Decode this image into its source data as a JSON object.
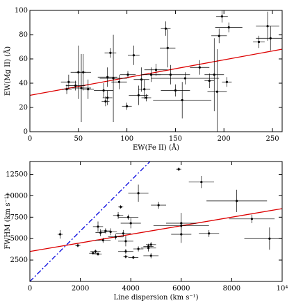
{
  "chart_data": [
    {
      "type": "scatter",
      "xlabel": "EW(Fe II) (Å)",
      "ylabel": "EW(Mg II) (Å)",
      "xlim": [
        0,
        260
      ],
      "ylim": [
        0,
        100
      ],
      "xticks": [
        0,
        50,
        100,
        150,
        200,
        250
      ],
      "yticks": [
        0,
        20,
        40,
        60,
        80,
        100
      ],
      "points": {
        "color": "#000000",
        "x": [
          38,
          40,
          47,
          50,
          53,
          55,
          60,
          76,
          78,
          80,
          80,
          83,
          86,
          92,
          100,
          101,
          107,
          112,
          115,
          118,
          120,
          125,
          130,
          140,
          142,
          145,
          150,
          157,
          160,
          175,
          185,
          190,
          193,
          195,
          198,
          203,
          236,
          245,
          248,
          205
        ],
        "y": [
          35,
          41,
          38,
          49,
          36,
          49,
          35,
          34,
          25,
          28,
          45,
          65,
          44,
          41,
          21,
          47,
          63,
          30,
          43,
          35,
          28,
          47,
          51,
          85,
          69,
          47,
          34,
          26,
          44,
          53,
          42,
          47,
          33,
          79,
          95,
          41,
          74,
          87,
          77,
          86
        ],
        "xerr": [
          5,
          8,
          10,
          8,
          10,
          8,
          6,
          10,
          4,
          5,
          10,
          6,
          14,
          8,
          5,
          8,
          6,
          10,
          8,
          6,
          5,
          10,
          12,
          5,
          8,
          20,
          15,
          30,
          35,
          10,
          5,
          10,
          10,
          8,
          6,
          5,
          6,
          12,
          15,
          14
        ],
        "yerr": [
          4,
          6,
          4,
          22,
          28,
          15,
          8,
          6,
          4,
          6,
          8,
          4,
          36,
          6,
          3,
          3,
          8,
          8,
          10,
          8,
          3,
          6,
          5,
          6,
          16,
          8,
          5,
          15,
          5,
          6,
          6,
          30,
          35,
          6,
          5,
          4,
          5,
          12,
          10,
          4
        ]
      },
      "lines": [
        {
          "x": [
            0,
            260
          ],
          "y": [
            30,
            68
          ],
          "color": "#dd0000",
          "dashed": false
        }
      ]
    },
    {
      "type": "scatter",
      "xlabel": "Line dispersion (km s⁻¹)",
      "ylabel": "FWHM (km s⁻¹)",
      "xlim": [
        0,
        10000
      ],
      "ylim": [
        0,
        14000
      ],
      "xticks": [
        0,
        2000,
        4000,
        6000,
        8000,
        {
          "value": 10000,
          "label": "10⁴"
        }
      ],
      "yticks": [
        2500,
        5000,
        7500,
        10000,
        12500
      ],
      "points": {
        "color": "#000000",
        "x": [
          1200,
          1900,
          2500,
          2600,
          2700,
          2700,
          2800,
          2900,
          3000,
          3200,
          3400,
          3500,
          3600,
          3700,
          3800,
          3800,
          3800,
          3900,
          4000,
          4100,
          4300,
          4300,
          4700,
          4700,
          4800,
          4800,
          5100,
          5900,
          6000,
          6000,
          6800,
          7100,
          8200,
          8800,
          9500,
          6000
        ],
        "y": [
          5500,
          4200,
          3300,
          3500,
          6400,
          3200,
          5700,
          4800,
          5900,
          5800,
          5200,
          7700,
          8700,
          5600,
          2900,
          4700,
          3500,
          7500,
          6800,
          2800,
          3800,
          10300,
          4100,
          3900,
          3000,
          4300,
          8900,
          13100,
          5500,
          6800,
          11600,
          5600,
          9400,
          7300,
          5000,
          6500
        ],
        "xerr": [
          100,
          100,
          150,
          200,
          200,
          150,
          200,
          300,
          200,
          250,
          300,
          200,
          100,
          300,
          100,
          300,
          300,
          400,
          400,
          200,
          200,
          400,
          200,
          300,
          300,
          200,
          300,
          100,
          400,
          600,
          500,
          400,
          1200,
          900,
          1000,
          1100
        ],
        "yerr": [
          500,
          200,
          150,
          200,
          600,
          200,
          400,
          300,
          300,
          400,
          300,
          400,
          200,
          400,
          200,
          600,
          300,
          300,
          600,
          200,
          300,
          1000,
          300,
          400,
          300,
          300,
          400,
          200,
          1000,
          1200,
          700,
          400,
          1300,
          500,
          1300,
          300
        ]
      },
      "lines": [
        {
          "x": [
            0,
            10000
          ],
          "y": [
            3500,
            8500
          ],
          "color": "#dd0000",
          "dashed": false
        },
        {
          "x": [
            0,
            4760
          ],
          "y": [
            0,
            14000
          ],
          "color": "#0000dd",
          "dashed": true
        }
      ]
    }
  ]
}
